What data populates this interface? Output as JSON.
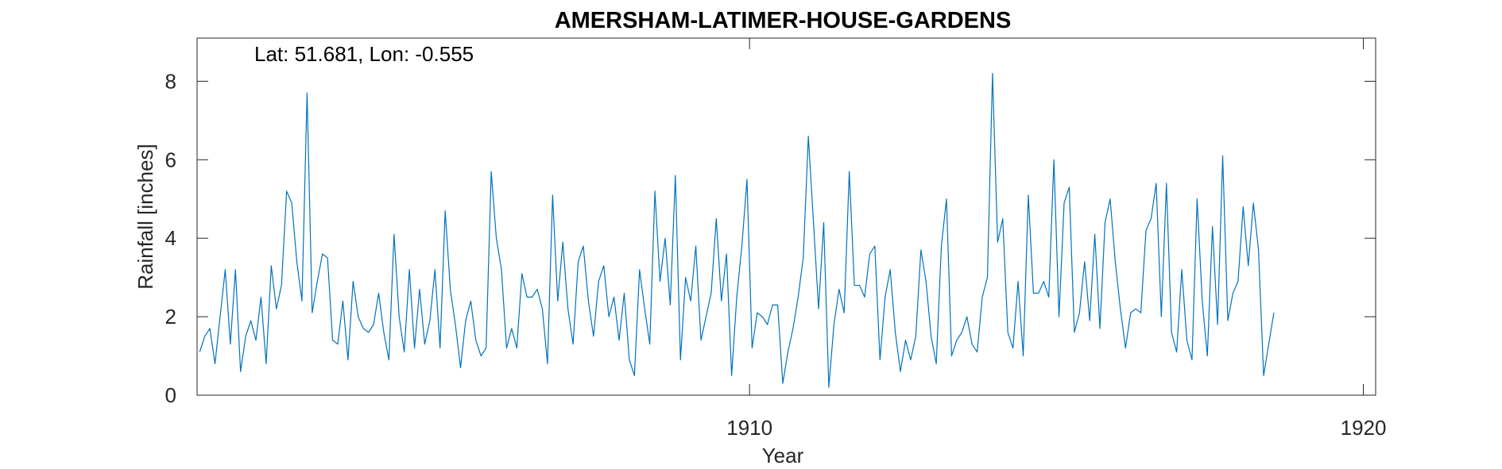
{
  "chart_data": {
    "type": "line",
    "title": "AMERSHAM-LATIMER-HOUSE-GARDENS",
    "annotation": "Lat: 51.681, Lon: -0.555",
    "xlabel": "Year",
    "ylabel": "Rainfall [inches]",
    "xlim": [
      1901.0,
      1920.2
    ],
    "ylim": [
      0,
      9.1
    ],
    "xticks": [
      1910,
      1920
    ],
    "yticks": [
      0,
      2,
      4,
      6,
      8
    ],
    "grid": false,
    "line_color": "#0072BD",
    "x_start_year": 1901,
    "x_step_months": 1,
    "series": [
      {
        "values": [
          1.1,
          1.5,
          1.7,
          0.8,
          2.0,
          3.2,
          1.3,
          3.2,
          0.6,
          1.5,
          1.9,
          1.4,
          2.5,
          0.8,
          3.3,
          2.2,
          2.8,
          5.2,
          4.9,
          3.4,
          2.4,
          7.7,
          2.1,
          2.9,
          3.6,
          3.5,
          1.4,
          1.3,
          2.4,
          0.9,
          2.9,
          2.0,
          1.7,
          1.6,
          1.8,
          2.6,
          1.6,
          0.9,
          4.1,
          2.0,
          1.1,
          3.2,
          1.2,
          2.7,
          1.3,
          1.9,
          3.2,
          1.2,
          4.7,
          2.7,
          1.8,
          0.7,
          1.9,
          2.4,
          1.4,
          1.0,
          1.2,
          5.7,
          4.0,
          3.2,
          1.2,
          1.7,
          1.2,
          3.1,
          2.5,
          2.5,
          2.7,
          2.2,
          0.8,
          5.1,
          2.4,
          3.9,
          2.2,
          1.3,
          3.4,
          3.8,
          2.4,
          1.5,
          2.9,
          3.3,
          2.0,
          2.5,
          1.4,
          2.6,
          0.9,
          0.5,
          3.2,
          2.2,
          1.3,
          5.2,
          2.9,
          4.0,
          2.3,
          5.6,
          0.9,
          3.0,
          2.4,
          3.8,
          1.4,
          2.0,
          2.6,
          4.5,
          2.4,
          3.6,
          0.5,
          2.5,
          3.8,
          5.5,
          1.2,
          2.1,
          2.0,
          1.8,
          2.3,
          2.3,
          0.3,
          1.1,
          1.7,
          2.5,
          3.5,
          6.6,
          4.4,
          2.2,
          4.4,
          0.2,
          1.8,
          2.7,
          2.1,
          5.7,
          2.8,
          2.8,
          2.5,
          3.6,
          3.8,
          0.9,
          2.5,
          3.2,
          1.6,
          0.6,
          1.4,
          0.9,
          1.5,
          3.7,
          2.9,
          1.5,
          0.8,
          3.8,
          5.0,
          1.0,
          1.4,
          1.6,
          2.0,
          1.3,
          1.1,
          2.5,
          3.0,
          8.2,
          3.9,
          4.5,
          1.6,
          1.2,
          2.9,
          1.0,
          5.1,
          2.6,
          2.6,
          2.9,
          2.5,
          6.0,
          2.0,
          4.9,
          5.3,
          1.6,
          2.1,
          3.4,
          1.9,
          4.1,
          1.7,
          4.4,
          5.0,
          3.4,
          2.2,
          1.2,
          2.1,
          2.2,
          2.1,
          4.2,
          4.5,
          5.4,
          2.0,
          5.4,
          1.6,
          1.1,
          3.2,
          1.4,
          0.9,
          5.0,
          2.4,
          1.0,
          4.3,
          1.8,
          6.1,
          1.9,
          2.6,
          2.9,
          4.8,
          3.3,
          4.9,
          3.7,
          0.5,
          1.3,
          2.1
        ]
      }
    ]
  }
}
